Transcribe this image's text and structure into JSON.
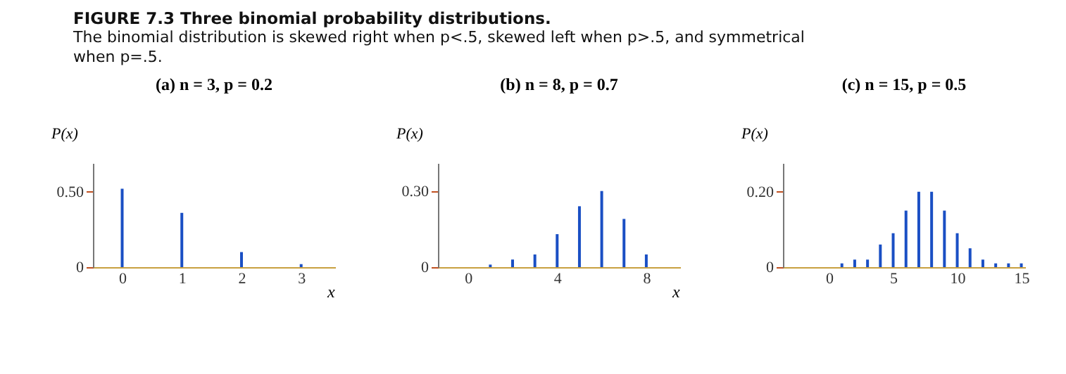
{
  "chart_data": [
    {
      "type": "bar",
      "title": "FIGURE 7.3 Three binomial probability distributions.",
      "subtitle": "The binomial distribution is skewed right when p<.5, skewed left when p>.5, and symmetrical when p=.5.",
      "annotations": [
        "(a) n = 3, p = 0.2"
      ],
      "xlabel": "x",
      "ylabel": "P(x)",
      "x": [
        0,
        1,
        2,
        3
      ],
      "values": [
        0.52,
        0.36,
        0.1,
        0.02
      ],
      "color": "#1a4fc4",
      "xlim": [
        -0.49,
        3.57
      ],
      "xticks": [
        0,
        1,
        2,
        3
      ],
      "ylim": [
        0,
        0.69
      ],
      "yticks": [
        {
          "value": 0,
          "label": "0"
        },
        {
          "value": 0.5,
          "label": "0.50"
        }
      ],
      "grid": false
    },
    {
      "type": "bar",
      "annotations": [
        "(b) n = 8, p = 0.7"
      ],
      "xlabel": "x",
      "ylabel": "P(x)",
      "x": [
        1,
        2,
        3,
        4,
        5,
        6,
        7,
        8
      ],
      "values": [
        0.01,
        0.03,
        0.05,
        0.13,
        0.24,
        0.3,
        0.19,
        0.05
      ],
      "color": "#1a4fc4",
      "xlim": [
        -1.35,
        9.52
      ],
      "xticks": [
        0,
        4,
        8
      ],
      "ylim": [
        0,
        0.41
      ],
      "yticks": [
        {
          "value": 0,
          "label": "0"
        },
        {
          "value": 0.3,
          "label": "0.30"
        }
      ],
      "grid": false
    },
    {
      "type": "bar",
      "annotations": [
        "(c) n = 15, p = 0.5"
      ],
      "ylabel": "P(x)",
      "x": [
        1,
        2,
        3,
        4,
        5,
        6,
        7,
        8,
        9,
        10,
        11,
        12,
        13,
        14,
        15
      ],
      "values": [
        0.01,
        0.02,
        0.02,
        0.06,
        0.09,
        0.15,
        0.2,
        0.2,
        0.15,
        0.09,
        0.05,
        0.02,
        0.01,
        0.01,
        0.01
      ],
      "color": "#1a4fc4",
      "xlim": [
        -3.6,
        15.3
      ],
      "xticks": [
        0,
        5,
        10,
        15
      ],
      "ylim": [
        0,
        0.276
      ],
      "yticks": [
        {
          "value": 0,
          "label": "0"
        },
        {
          "value": 0.2,
          "label": "0.20"
        }
      ],
      "grid": false
    }
  ]
}
